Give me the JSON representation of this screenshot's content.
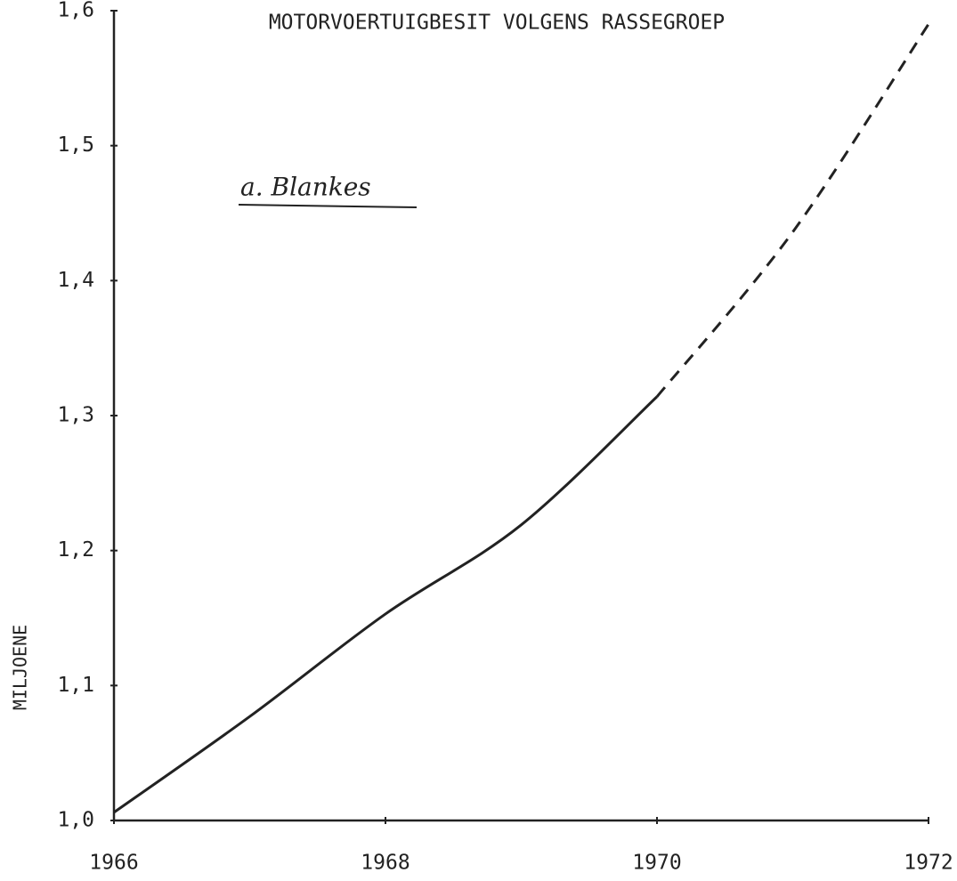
{
  "chart_data": {
    "type": "line",
    "title": "MOTORVOERTUIGBESIT VOLGENS RASSEGROEP",
    "annotation": "a. Blankes",
    "y_label": "MILJOENE",
    "x": [
      1966,
      1967,
      1968,
      1969,
      1970,
      1971,
      1972
    ],
    "series": [
      {
        "color": "#222222",
        "dashed": false,
        "values": [
          1.006,
          1.077,
          1.153,
          1.219,
          1.314,
          null,
          null
        ]
      },
      {
        "color": "#222222",
        "dashed": true,
        "values": [
          null,
          null,
          null,
          null,
          1.314,
          1.436,
          1.59
        ]
      }
    ],
    "xlim": [
      1966,
      1972
    ],
    "xticks": [
      1966,
      1968,
      1970,
      1972
    ],
    "ylim": [
      1.0,
      1.6
    ],
    "yticks": [
      {
        "value": 1.0,
        "label": "1,0"
      },
      {
        "value": 1.1,
        "label": "1,1"
      },
      {
        "value": 1.2,
        "label": "1,2"
      },
      {
        "value": 1.3,
        "label": "1,3"
      },
      {
        "value": 1.4,
        "label": "1,4"
      },
      {
        "value": 1.5,
        "label": "1,5"
      },
      {
        "value": 1.6,
        "label": "1,6"
      }
    ],
    "grid": false
  }
}
